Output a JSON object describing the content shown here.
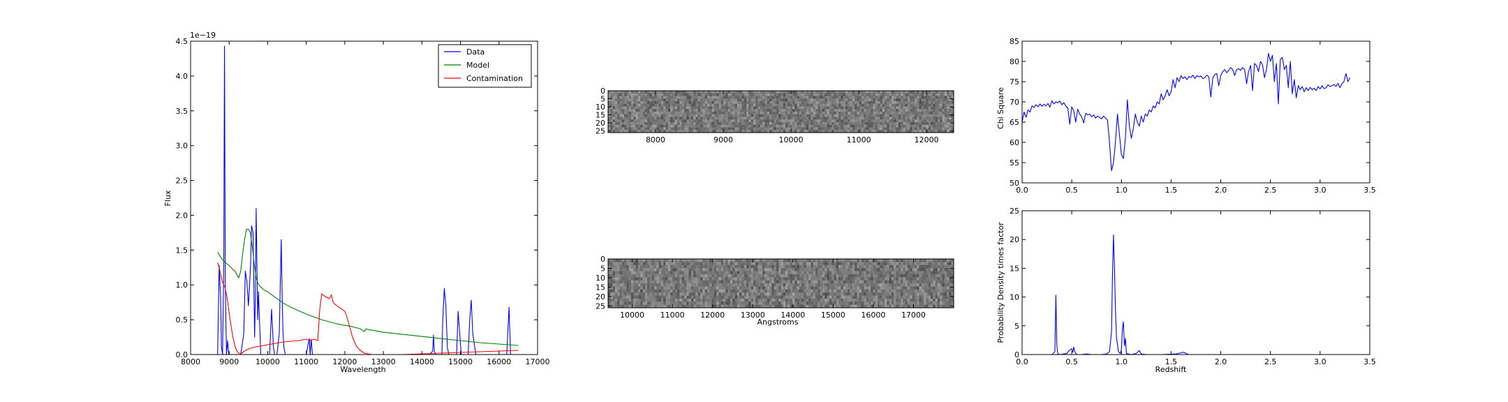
{
  "chart_data": [
    {
      "id": "spectrum",
      "type": "line",
      "xlabel": "Wavelength",
      "ylabel": "Flux",
      "offset_text": "1e−19",
      "xlim": [
        8000,
        17000
      ],
      "ylim": [
        0,
        4.5
      ],
      "xticks": [
        8000,
        9000,
        10000,
        11000,
        12000,
        13000,
        14000,
        15000,
        16000,
        17000
      ],
      "yticks": [
        0.0,
        0.5,
        1.0,
        1.5,
        2.0,
        2.5,
        3.0,
        3.5,
        4.0,
        4.5
      ],
      "ytick_labels": [
        "0.0",
        "0.5",
        "1.0",
        "1.5",
        "2.0",
        "2.5",
        "3.0",
        "3.5",
        "4.0",
        "4.5"
      ],
      "legend": {
        "position": "upper-right",
        "entries": [
          "Data",
          "Model",
          "Contamination"
        ]
      },
      "series": [
        {
          "name": "Data",
          "color": "#0000ff",
          "x": [
            8700,
            8740,
            8780,
            8800,
            8830,
            8860,
            8880,
            8900,
            8930,
            8960,
            8990,
            9020,
            9100,
            9200,
            9300,
            9380,
            9420,
            9460,
            9500,
            9540,
            9560,
            9580,
            9620,
            9660,
            9680,
            9700,
            9720,
            9740,
            9760,
            9780,
            9800,
            9820,
            9850,
            9880,
            9920,
            10050,
            10100,
            10150,
            10180,
            10200,
            10240,
            10300,
            10350,
            10380,
            10400,
            10420,
            10460,
            10500,
            11000,
            11050,
            11080,
            11100,
            11130,
            11160,
            11200,
            14000,
            14200,
            14280,
            14300,
            14320,
            14360,
            14400,
            14450,
            14500,
            14520,
            14540,
            14580,
            14620,
            14660,
            14700,
            14800,
            14850,
            14900,
            14940,
            14980,
            15020,
            15100,
            15150,
            15200,
            15240,
            15280,
            15320,
            15400,
            16100,
            16150,
            16200,
            16230,
            16260,
            16300,
            16400
          ],
          "values": [
            0.0,
            1.28,
            0.8,
            0.1,
            0.0,
            1.3,
            4.43,
            1.0,
            0.0,
            0.2,
            0.0,
            0.0,
            0.0,
            0.0,
            0.0,
            0.3,
            1.2,
            1.05,
            0.7,
            1.1,
            1.35,
            1.85,
            1.75,
            0.25,
            0.85,
            2.1,
            1.3,
            0.5,
            0.9,
            0.6,
            0.3,
            0.0,
            0.0,
            0.0,
            0.0,
            0.0,
            0.65,
            0.1,
            0.0,
            0.0,
            0.0,
            0.3,
            1.65,
            0.7,
            0.3,
            0.1,
            0.0,
            0.0,
            0.0,
            0.15,
            0.23,
            0.0,
            0.22,
            0.0,
            0.0,
            0.0,
            0.0,
            0.05,
            0.28,
            0.05,
            0.0,
            0.0,
            0.0,
            0.0,
            0.0,
            0.5,
            0.95,
            0.7,
            0.1,
            0.0,
            0.0,
            0.0,
            0.0,
            0.62,
            0.3,
            0.0,
            0.0,
            0.0,
            0.0,
            0.5,
            0.78,
            0.3,
            0.0,
            0.0,
            0.0,
            0.0,
            0.35,
            0.68,
            0.0,
            0.0
          ]
        },
        {
          "name": "Model",
          "color": "#008000",
          "x": [
            8700,
            8800,
            8900,
            9000,
            9100,
            9150,
            9200,
            9250,
            9300,
            9350,
            9400,
            9450,
            9500,
            9550,
            9600,
            9650,
            9700,
            9750,
            9800,
            9900,
            10000,
            10200,
            10400,
            10600,
            10800,
            11000,
            11200,
            11400,
            11600,
            11800,
            12000,
            12200,
            12400,
            12450,
            12500,
            12550,
            12600,
            12800,
            13000,
            13500,
            14000,
            14500,
            15000,
            15500,
            16000,
            16500
          ],
          "values": [
            1.47,
            1.38,
            1.32,
            1.28,
            1.22,
            1.2,
            1.15,
            1.1,
            1.2,
            1.45,
            1.65,
            1.8,
            1.8,
            1.75,
            1.55,
            1.3,
            1.1,
            1.02,
            0.98,
            0.93,
            0.9,
            0.82,
            0.74,
            0.68,
            0.63,
            0.58,
            0.54,
            0.5,
            0.47,
            0.44,
            0.42,
            0.4,
            0.37,
            0.35,
            0.33,
            0.37,
            0.36,
            0.34,
            0.32,
            0.29,
            0.26,
            0.23,
            0.2,
            0.17,
            0.15,
            0.13
          ]
        },
        {
          "name": "Contamination",
          "color": "#ff0000",
          "x": [
            8700,
            8740,
            8780,
            8820,
            8860,
            8900,
            8950,
            9000,
            9050,
            9100,
            9150,
            9200,
            9250,
            9300,
            9350,
            9400,
            9500,
            9600,
            9800,
            10000,
            10200,
            10400,
            10600,
            10800,
            11000,
            11100,
            11200,
            11300,
            11350,
            11400,
            11450,
            11500,
            11550,
            11600,
            11650,
            11700,
            11750,
            11800,
            11900,
            12000,
            12050,
            12100,
            12150,
            12200,
            12300,
            12400,
            12500,
            12700,
            13000,
            13500,
            14000,
            14500,
            15000,
            15500,
            16000,
            16500
          ],
          "values": [
            1.32,
            1.25,
            1.15,
            1.05,
            1.0,
            0.95,
            0.8,
            0.6,
            0.4,
            0.25,
            0.12,
            0.05,
            0.02,
            0.01,
            0.03,
            0.05,
            0.08,
            0.1,
            0.12,
            0.14,
            0.16,
            0.18,
            0.19,
            0.2,
            0.22,
            0.2,
            0.22,
            0.2,
            0.65,
            0.87,
            0.85,
            0.83,
            0.82,
            0.8,
            0.86,
            0.75,
            0.72,
            0.7,
            0.66,
            0.62,
            0.55,
            0.45,
            0.35,
            0.25,
            0.12,
            0.06,
            0.02,
            0.0,
            0.0,
            0.0,
            0.01,
            0.02,
            0.03,
            0.04,
            0.05,
            0.06
          ]
        }
      ]
    },
    {
      "id": "image-top",
      "type": "heatmap",
      "xlim": [
        7300,
        12400
      ],
      "ylim": [
        26,
        0
      ],
      "xticks": [
        8000,
        9000,
        10000,
        11000,
        12000
      ],
      "yticks": [
        0,
        5,
        10,
        15,
        20,
        25
      ],
      "colormap": "gray"
    },
    {
      "id": "image-bottom",
      "type": "heatmap",
      "xlabel": "Angstroms",
      "xlim": [
        9400,
        18000
      ],
      "ylim": [
        26,
        0
      ],
      "xticks": [
        10000,
        11000,
        12000,
        13000,
        14000,
        15000,
        16000,
        17000
      ],
      "yticks": [
        0,
        5,
        10,
        15,
        20,
        25
      ],
      "colormap": "gray"
    },
    {
      "id": "chisq",
      "type": "line",
      "ylabel": "Chi Square",
      "xlim": [
        0,
        3.5
      ],
      "ylim": [
        50,
        85
      ],
      "xticks": [
        0.0,
        0.5,
        1.0,
        1.5,
        2.0,
        2.5,
        3.0,
        3.5
      ],
      "xtick_labels": [
        "0.0",
        "0.5",
        "1.0",
        "1.5",
        "2.0",
        "2.5",
        "3.0",
        "3.5"
      ],
      "yticks": [
        50,
        55,
        60,
        65,
        70,
        75,
        80,
        85
      ],
      "series": [
        {
          "color": "#0000ff",
          "x": [
            0.0,
            0.02,
            0.04,
            0.06,
            0.08,
            0.1,
            0.12,
            0.14,
            0.16,
            0.18,
            0.2,
            0.22,
            0.24,
            0.26,
            0.28,
            0.3,
            0.32,
            0.34,
            0.36,
            0.38,
            0.4,
            0.42,
            0.44,
            0.46,
            0.48,
            0.5,
            0.52,
            0.54,
            0.56,
            0.58,
            0.6,
            0.62,
            0.64,
            0.66,
            0.68,
            0.7,
            0.72,
            0.74,
            0.76,
            0.78,
            0.8,
            0.82,
            0.84,
            0.86,
            0.88,
            0.9,
            0.92,
            0.94,
            0.96,
            0.98,
            1.0,
            1.02,
            1.04,
            1.06,
            1.08,
            1.1,
            1.12,
            1.14,
            1.16,
            1.18,
            1.2,
            1.22,
            1.24,
            1.26,
            1.28,
            1.3,
            1.32,
            1.34,
            1.36,
            1.38,
            1.4,
            1.42,
            1.44,
            1.46,
            1.48,
            1.5,
            1.52,
            1.54,
            1.56,
            1.58,
            1.6,
            1.62,
            1.64,
            1.66,
            1.68,
            1.7,
            1.72,
            1.74,
            1.76,
            1.78,
            1.8,
            1.82,
            1.84,
            1.86,
            1.88,
            1.9,
            1.92,
            1.94,
            1.96,
            1.98,
            2.0,
            2.02,
            2.04,
            2.06,
            2.08,
            2.1,
            2.12,
            2.14,
            2.16,
            2.18,
            2.2,
            2.22,
            2.24,
            2.26,
            2.28,
            2.3,
            2.32,
            2.34,
            2.36,
            2.38,
            2.4,
            2.42,
            2.44,
            2.46,
            2.48,
            2.5,
            2.52,
            2.54,
            2.56,
            2.58,
            2.6,
            2.62,
            2.64,
            2.66,
            2.68,
            2.7,
            2.72,
            2.74,
            2.76,
            2.78,
            2.8,
            2.82,
            2.84,
            2.86,
            2.88,
            2.9,
            2.92,
            2.94,
            2.96,
            2.98,
            3.0,
            3.02,
            3.04,
            3.06,
            3.08,
            3.1,
            3.12,
            3.14,
            3.16,
            3.18,
            3.2,
            3.22,
            3.24,
            3.26,
            3.28,
            3.3
          ],
          "values": [
            65.0,
            67.5,
            66.2,
            68.0,
            67.5,
            69.0,
            68.6,
            69.3,
            68.8,
            69.5,
            68.9,
            69.4,
            69.0,
            69.6,
            68.7,
            70.3,
            69.5,
            70.0,
            69.8,
            70.2,
            69.3,
            69.8,
            69.0,
            68.5,
            64.5,
            68.8,
            67.8,
            65.0,
            68.2,
            67.0,
            66.3,
            64.8,
            67.2,
            66.8,
            67.0,
            66.3,
            66.8,
            66.0,
            66.5,
            66.2,
            65.8,
            66.5,
            66.0,
            65.5,
            60.0,
            53.0,
            55.0,
            60.0,
            67.0,
            62.0,
            57.0,
            56.0,
            61.0,
            70.5,
            64.0,
            61.0,
            63.5,
            67.0,
            65.0,
            64.0,
            66.5,
            65.0,
            67.0,
            66.5,
            68.0,
            67.5,
            69.0,
            68.5,
            70.0,
            69.5,
            72.0,
            70.5,
            71.5,
            73.0,
            71.5,
            72.5,
            75.5,
            73.5,
            76.0,
            75.0,
            76.5,
            75.8,
            76.2,
            75.5,
            76.3,
            76.0,
            76.6,
            75.8,
            76.5,
            76.2,
            76.4,
            75.8,
            76.0,
            76.6,
            76.2,
            71.2,
            76.0,
            76.8,
            77.0,
            74.0,
            76.5,
            77.5,
            78.0,
            77.2,
            77.8,
            78.5,
            78.0,
            76.5,
            78.0,
            78.2,
            77.8,
            78.5,
            78.0,
            74.5,
            77.5,
            79.0,
            72.8,
            79.5,
            79.0,
            77.5,
            80.0,
            79.2,
            76.0,
            78.0,
            82.0,
            80.0,
            81.5,
            75.0,
            79.5,
            69.5,
            80.5,
            81.0,
            78.0,
            79.0,
            73.5,
            80.0,
            72.0,
            75.5,
            71.0,
            74.0,
            73.0,
            73.8,
            72.5,
            73.5,
            72.8,
            73.6,
            73.0,
            73.4,
            72.8,
            73.8,
            73.2,
            74.0,
            73.3,
            73.5,
            74.2,
            73.8,
            74.0,
            74.3,
            73.8,
            74.6,
            73.5,
            74.5,
            75.0,
            77.0,
            75.0,
            76.0
          ]
        }
      ]
    },
    {
      "id": "pdf",
      "type": "line",
      "xlabel": "Redshift",
      "ylabel": "Probability Density times factor",
      "xlim": [
        0,
        3.5
      ],
      "ylim": [
        0,
        25
      ],
      "xticks": [
        0.0,
        0.5,
        1.0,
        1.5,
        2.0,
        2.5,
        3.0,
        3.5
      ],
      "xtick_labels": [
        "0.0",
        "0.5",
        "1.0",
        "1.5",
        "2.0",
        "2.5",
        "3.0",
        "3.5"
      ],
      "yticks": [
        0,
        5,
        10,
        15,
        20,
        25
      ],
      "series": [
        {
          "color": "#0000ff",
          "x": [
            0.0,
            0.3,
            0.33,
            0.34,
            0.35,
            0.36,
            0.38,
            0.45,
            0.48,
            0.5,
            0.51,
            0.52,
            0.53,
            0.55,
            0.6,
            0.65,
            0.7,
            0.8,
            0.85,
            0.88,
            0.9,
            0.91,
            0.92,
            0.93,
            0.94,
            0.95,
            0.97,
            0.99,
            1.0,
            1.01,
            1.02,
            1.03,
            1.04,
            1.05,
            1.07,
            1.1,
            1.15,
            1.18,
            1.2,
            1.25,
            1.4,
            1.55,
            1.6,
            1.62,
            1.64,
            1.66,
            1.68,
            1.75,
            2.0,
            3.3
          ],
          "values": [
            0.0,
            0.0,
            0.5,
            10.3,
            1.5,
            0.1,
            0.0,
            0.2,
            0.8,
            1.0,
            0.4,
            1.3,
            0.5,
            0.0,
            0.0,
            0.1,
            0.0,
            0.0,
            0.1,
            0.5,
            4.0,
            14.0,
            20.8,
            15.0,
            8.0,
            3.0,
            0.5,
            0.2,
            1.0,
            4.5,
            5.7,
            1.5,
            2.8,
            0.2,
            0.1,
            0.0,
            0.2,
            0.7,
            0.1,
            0.0,
            0.0,
            0.1,
            0.3,
            0.4,
            0.3,
            0.1,
            0.0,
            0.0,
            0.0,
            0.0
          ]
        }
      ]
    }
  ]
}
